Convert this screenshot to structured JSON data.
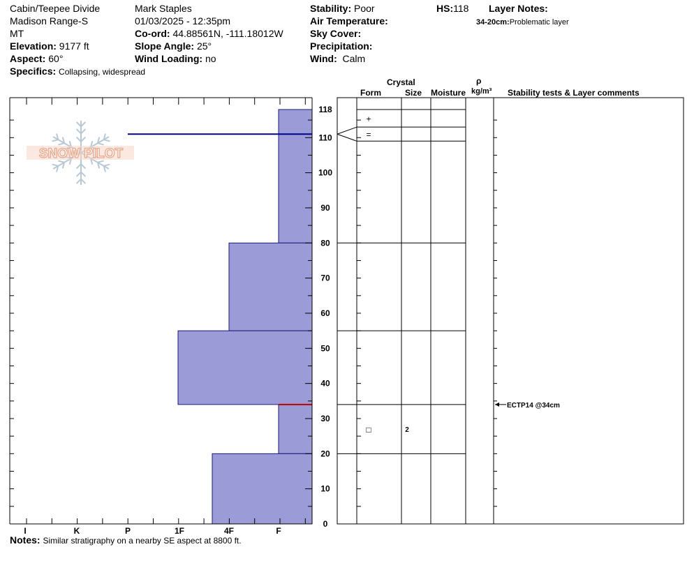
{
  "header": {
    "location": "Cabin/Teepee Divide",
    "range": "Madison Range-S",
    "state": "MT",
    "elevation_label": "Elevation:",
    "elevation_value": "9177 ft",
    "aspect_label": "Aspect:",
    "aspect_value": "60°",
    "specifics_label": "Specifics:",
    "specifics_value": "Collapsing, widespread",
    "observer": "Mark Staples",
    "datetime": "01/03/2025 - 12:35pm",
    "coord_label": "Co-ord:",
    "coord_value": "44.88561N, -111.18012W",
    "slope_label": "Slope Angle:",
    "slope_value": "25°",
    "wind_loading_label": "Wind Loading:",
    "wind_loading_value": "no",
    "stability_label": "Stability:",
    "stability_value": "Poor",
    "air_temp_label": "Air Temperature:",
    "sky_cover_label": "Sky Cover:",
    "precip_label": "Precipitation:",
    "wind_label": "Wind:",
    "wind_value": "Calm",
    "hs_label": "HS:",
    "hs_value": "118",
    "layer_notes_label": "Layer Notes:",
    "layer_note_range": "34-20cm:",
    "layer_note_text": "Problematic layer"
  },
  "logo": {
    "text": "SNOW PILOT"
  },
  "notes": {
    "label": "Notes:",
    "text": "Similar stratigraphy on a nearby SE aspect at 8800 ft."
  },
  "columns": {
    "crystal": "Crystal",
    "form": "Form",
    "size": "Size",
    "moisture": "Moisture",
    "rho": "ρ",
    "density_unit": "kg/m³",
    "stability_comments": "Stability tests & Layer comments"
  },
  "chart_data": {
    "type": "snow_profile",
    "height_axis": {
      "min": 0,
      "max": 118,
      "ticks": [
        0,
        10,
        20,
        30,
        40,
        50,
        60,
        70,
        80,
        90,
        100,
        110,
        118
      ]
    },
    "hardness_axis": {
      "categories": [
        "I",
        "K",
        "P",
        "1F",
        "4F",
        "F"
      ],
      "direction": "hardness decreases to the right"
    },
    "hardness_layers": [
      {
        "top": 118,
        "bottom": 80,
        "hardness": "F"
      },
      {
        "top": 80,
        "bottom": 55,
        "hardness": "4F"
      },
      {
        "top": 55,
        "bottom": 34,
        "hardness": "1F-"
      },
      {
        "top": 34,
        "bottom": 20,
        "hardness": "F"
      },
      {
        "top": 20,
        "bottom": 0,
        "hardness": "4F+"
      }
    ],
    "layer_boundaries": [
      118,
      113,
      109,
      80,
      55,
      34,
      20
    ],
    "grain_forms": [
      {
        "top": 118,
        "bottom": 113,
        "symbol": "+"
      },
      {
        "top": 113,
        "bottom": 109,
        "symbol": "="
      },
      {
        "top": 34,
        "bottom": 20,
        "symbol": "□",
        "size": "2"
      }
    ],
    "surface_marker_height": 111,
    "problem_layer_height": 34,
    "stability_tests": [
      {
        "height": 34,
        "text": "ECTP14 @34cm"
      }
    ],
    "colors": {
      "hardness_fill": "#9b9bd8",
      "hardness_stroke": "#1a1a7a",
      "surface_line": "#00008b",
      "problem_line": "#c00000",
      "logo": "#e8a68a",
      "snowflake": "#b8c8d4"
    }
  }
}
